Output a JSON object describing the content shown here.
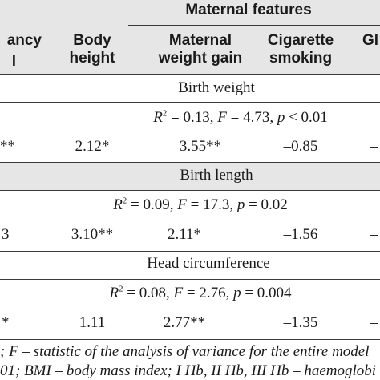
{
  "header": {
    "group_title": "Maternal features",
    "columns": [
      {
        "line1": "ancy",
        "line2": "l"
      },
      {
        "line1": "Body",
        "line2": "height"
      },
      {
        "line1": "Maternal",
        "line2": "weight gain"
      },
      {
        "line1": "Cigarette",
        "line2": "smoking"
      },
      {
        "line1": "Gl",
        "line2": ""
      }
    ]
  },
  "sections": [
    {
      "title": "Birth weight",
      "stats": {
        "r2": "R² = 0.13, F = 4.73, p < 0.01"
      },
      "row": [
        "**",
        "2.12*",
        "3.55**",
        "–0.85",
        "–"
      ]
    },
    {
      "title": "Birth length",
      "stats": {
        "r2": "R² = 0.09, F = 17.3, p = 0.02"
      },
      "row": [
        "3",
        "3.10**",
        "2.11*",
        "–1.56",
        "–"
      ]
    },
    {
      "title": "Head circumference",
      "stats": {
        "r2": "R² = 0.08, F = 2.76, p = 0.004"
      },
      "row": [
        "*",
        "1.11",
        "2.77**",
        "–1.35",
        "–"
      ]
    }
  ],
  "footnotes": {
    "line1": "; F – statistic of the analysis of variance for the entire model",
    "line2": "01; BMI – body mass index; I Hb, II Hb, III Hb – haemoglobi"
  },
  "colors": {
    "header_bg": "#e6e6e6",
    "rule": "#3a3a3a"
  }
}
